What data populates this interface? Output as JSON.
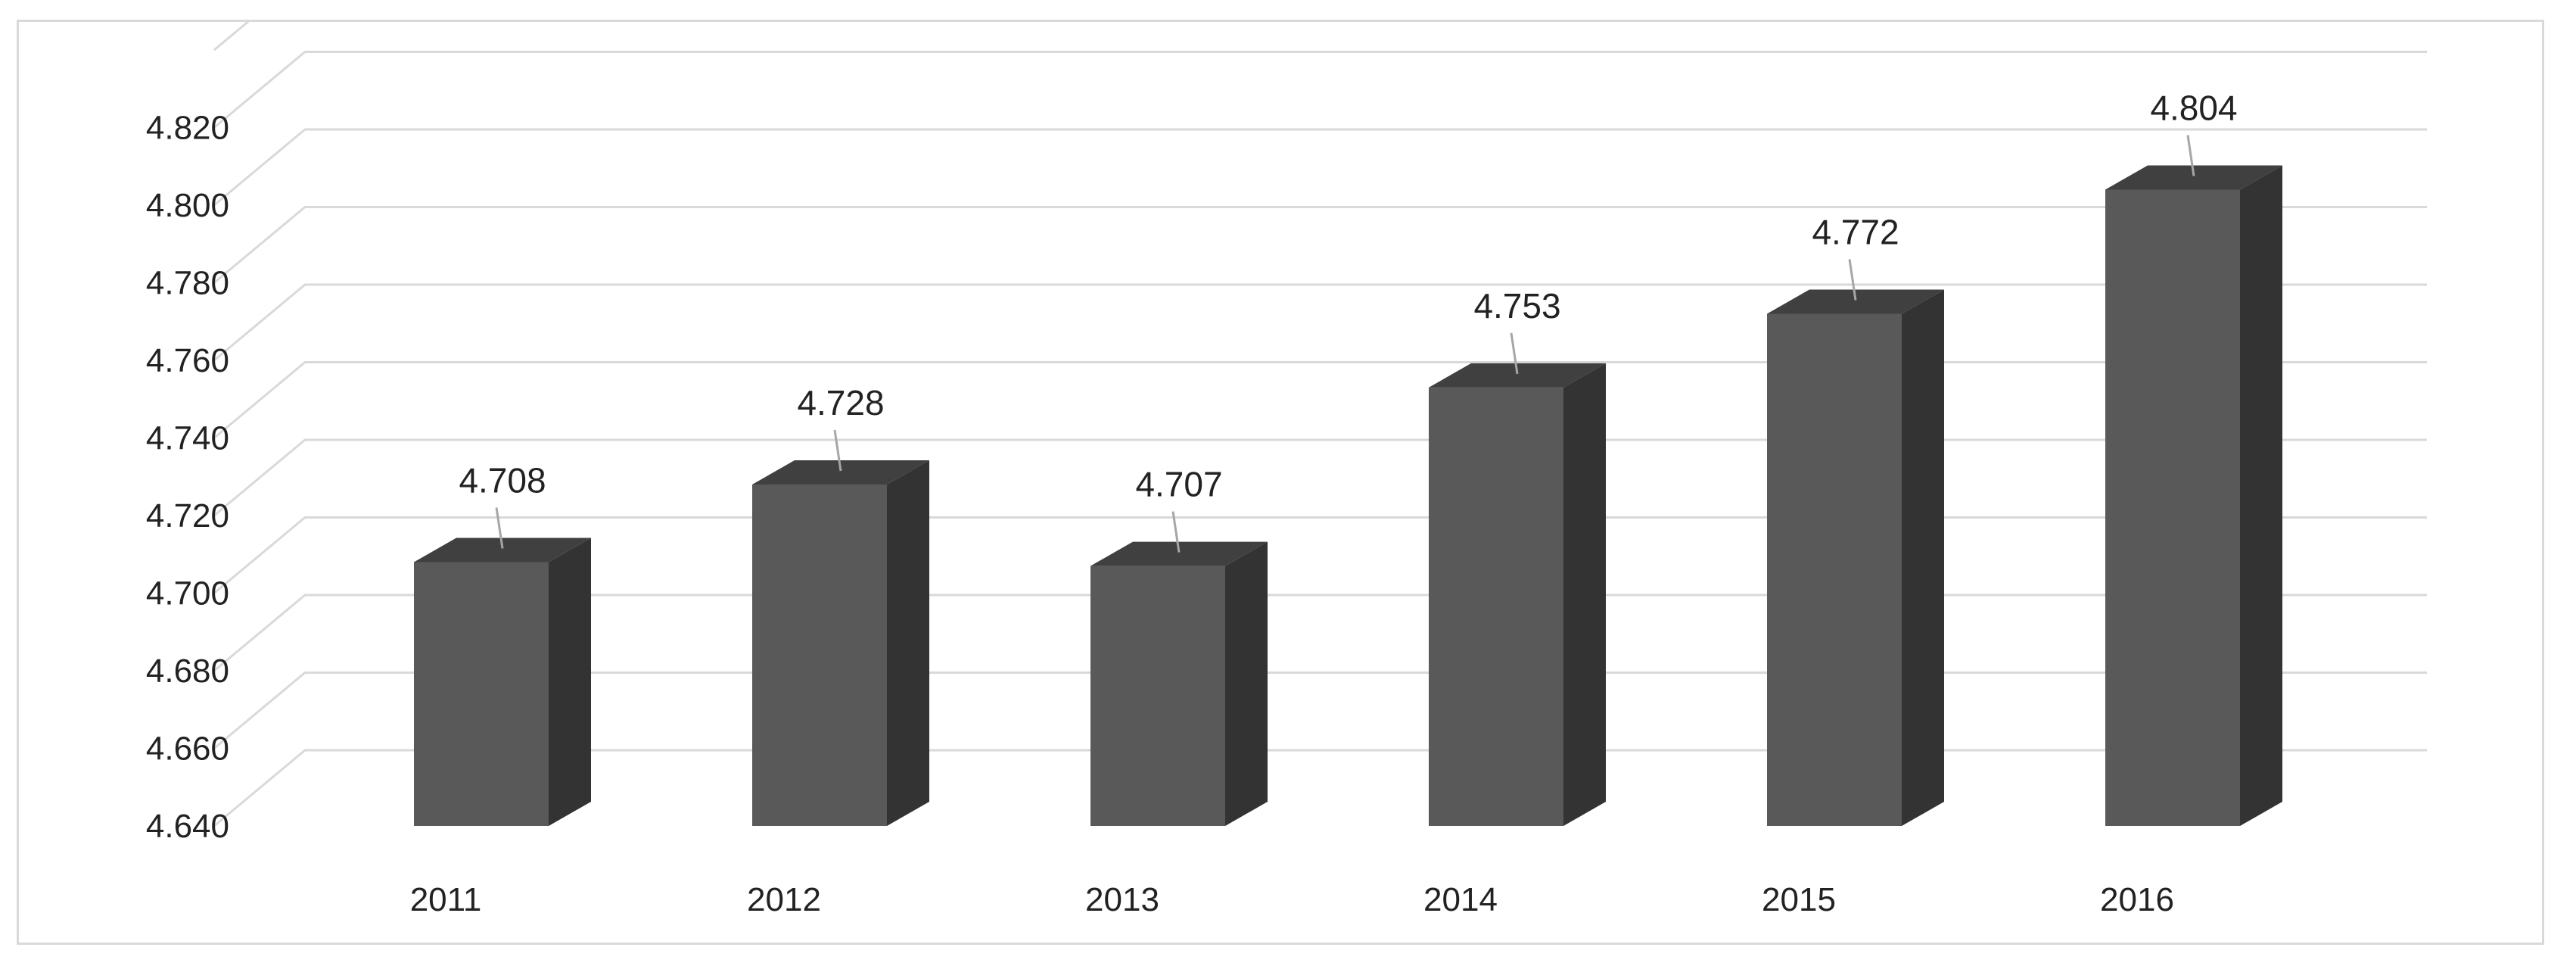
{
  "chart_data": {
    "type": "bar",
    "style": "3d-column",
    "categories": [
      "2011",
      "2012",
      "2013",
      "2014",
      "2015",
      "2016"
    ],
    "values": [
      4.708,
      4.728,
      4.707,
      4.753,
      4.772,
      4.804
    ],
    "data_labels": [
      "4.708",
      "4.728",
      "4.707",
      "4.753",
      "4.772",
      "4.804"
    ],
    "y_ticks": [
      "4.640",
      "4.660",
      "4.680",
      "4.700",
      "4.720",
      "4.740",
      "4.760",
      "4.780",
      "4.800",
      "4.820"
    ],
    "ylim": [
      4.64,
      4.84
    ],
    "title": "",
    "xlabel": "",
    "ylabel": "",
    "grid": true,
    "legend": "none",
    "colors": {
      "front": "#595959",
      "side": "#333333",
      "top": "#404040",
      "grid": "#d9d9d9"
    }
  }
}
